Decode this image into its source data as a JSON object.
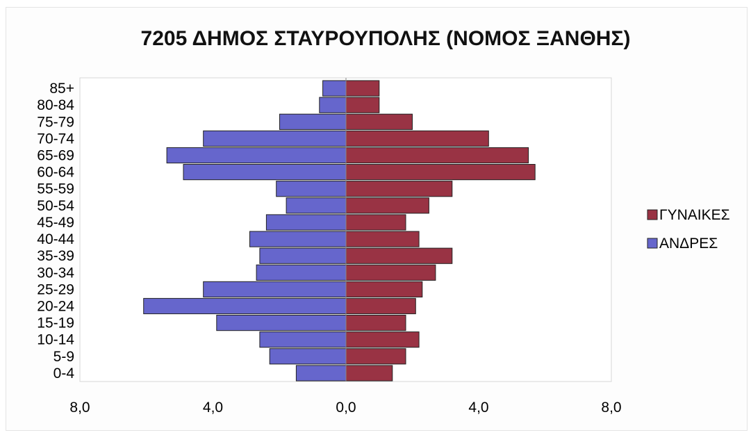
{
  "chart_data": {
    "type": "bar",
    "orientation": "horizontal",
    "layout": "population-pyramid",
    "title": "7205 ΔΗΜΟΣ ΣΤΑΥΡΟΥΠΟΛΗΣ (ΝΟΜΟΣ ΞΑΝΘΗΣ)",
    "categories": [
      "0-4",
      "5-9",
      "10-14",
      "15-19",
      "20-24",
      "25-29",
      "30-34",
      "35-39",
      "40-44",
      "45-49",
      "50-54",
      "55-59",
      "60-64",
      "65-69",
      "70-74",
      "75-79",
      "80-84",
      "85+"
    ],
    "series": [
      {
        "name": "ΓΥΝΑΙΚΕΣ",
        "color": "#993344",
        "side": "right",
        "values": [
          1.4,
          1.8,
          2.2,
          1.8,
          2.1,
          2.3,
          2.7,
          3.2,
          2.2,
          1.8,
          2.5,
          3.2,
          5.7,
          5.5,
          4.3,
          2.0,
          1.0,
          1.0
        ]
      },
      {
        "name": "ΑΝΔΡΕΣ",
        "color": "#6666cc",
        "side": "left",
        "values": [
          1.5,
          2.3,
          2.6,
          3.9,
          6.1,
          4.3,
          2.7,
          2.6,
          2.9,
          2.4,
          1.8,
          2.1,
          4.9,
          5.4,
          4.3,
          2.0,
          0.8,
          0.7
        ]
      }
    ],
    "x_tick_labels": [
      "8,0",
      "4,0",
      "0,0",
      "4,0",
      "8,0"
    ],
    "xlim": [
      -8,
      8
    ],
    "grid": false,
    "legend_position": "right"
  }
}
